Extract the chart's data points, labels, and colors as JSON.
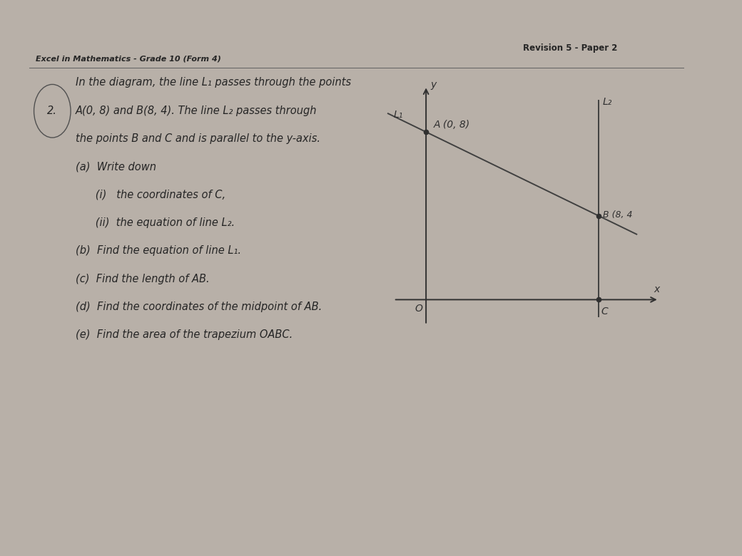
{
  "outer_bg": "#b8b0a8",
  "page_bg": "#eceae6",
  "header_text": "Excel in Mathematics - Grade 10 (Form 4)",
  "revision_text": "Revision 5 - Paper 2",
  "question_number": "2.",
  "problem_text_lines": [
    [
      "In the diagram, the line L₁ passes through the points",
      false
    ],
    [
      "A(0, 8) and B(8, 4). The line L₂ passes through",
      false
    ],
    [
      "the points B and C and is parallel to the y-axis.",
      false
    ],
    [
      "(a)  Write down",
      false
    ],
    [
      "      (i)   the coordinates of C,",
      false
    ],
    [
      "      (ii)  the equation of line L₂.",
      false
    ],
    [
      "(b)  Find the equation of line L₁.",
      false
    ],
    [
      "(c)  Find the length of AB.",
      false
    ],
    [
      "(d)  Find the coordinates of the midpoint of AB.",
      false
    ],
    [
      "(e)  Find the area of the trapezium OABC.",
      false
    ]
  ],
  "diagram": {
    "A": [
      0,
      8
    ],
    "B": [
      8,
      4
    ],
    "C": [
      8,
      0
    ],
    "O": [
      0,
      0
    ],
    "line_color": "#404040",
    "point_color": "#303030",
    "axis_color": "#303030",
    "label_A": "A (0, 8)",
    "label_B": "B (8, 4",
    "label_C": "C",
    "label_O": "O",
    "label_y": "y",
    "label_x": "x",
    "label_L1": "L₁",
    "label_L2": "L₂"
  },
  "circle_color": "#505050",
  "text_color": "#252525",
  "header_line_color": "#606060",
  "font_size_header": 8,
  "font_size_body": 10.5,
  "font_size_revision": 8.5,
  "font_size_diag": 10
}
